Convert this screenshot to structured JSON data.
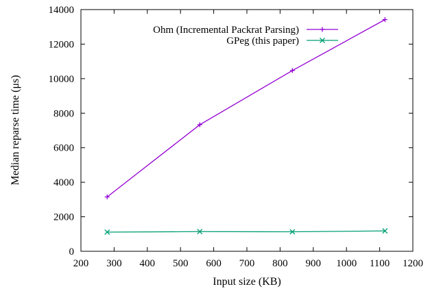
{
  "chart_data": {
    "type": "line",
    "xlabel": "Input size (KB)",
    "ylabel": "Median reparse time (μs)",
    "xlim": [
      200,
      1200
    ],
    "ylim": [
      0,
      14000
    ],
    "x_ticks": [
      200,
      300,
      400,
      500,
      600,
      700,
      800,
      900,
      1000,
      1100,
      1200
    ],
    "y_ticks": [
      0,
      2000,
      4000,
      6000,
      8000,
      10000,
      12000,
      14000
    ],
    "grid": false,
    "legend_position": "top-right",
    "series": [
      {
        "name": "Ohm (Incremental Packrat Parsing)",
        "color": "#9400d3",
        "marker": "plus",
        "points": [
          [
            279,
            3150
          ],
          [
            558,
            7330
          ],
          [
            837,
            10470
          ],
          [
            1116,
            13420
          ]
        ]
      },
      {
        "name": "GPeg (this paper)",
        "color": "#009e73",
        "marker": "cross",
        "points": [
          [
            279,
            1110
          ],
          [
            558,
            1140
          ],
          [
            837,
            1130
          ],
          [
            1116,
            1180
          ]
        ]
      }
    ]
  }
}
